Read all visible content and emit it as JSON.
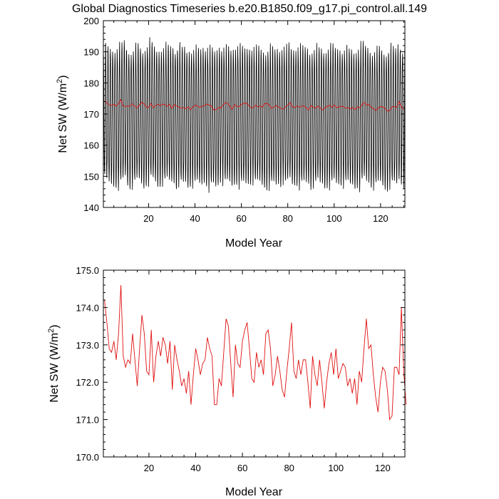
{
  "title": "Global Diagnostics Timeseries b.e20.B1850.f09_g17.pi_control.all.149",
  "colors": {
    "monthly": "#000000",
    "annual": "#e01010",
    "frame": "#000000"
  },
  "chart_data": [
    {
      "type": "line",
      "title": "Global Diagnostics Timeseries b.e20.B1850.f09_g17.pi_control.all.149",
      "xlabel": "Model Year",
      "ylabel_text": "Net SW (W/m",
      "ylabel_sup": "2",
      "ylabel_close": ")",
      "xlim": [
        0.5,
        130.5
      ],
      "ylim": [
        140,
        200
      ],
      "xticks": [
        20,
        40,
        60,
        80,
        100,
        120
      ],
      "yticks": [
        140,
        150,
        160,
        170,
        180,
        190,
        200
      ],
      "ytick_labels": [
        "140",
        "150",
        "160",
        "170",
        "180",
        "190",
        "200"
      ],
      "xtick_labels": [
        "20",
        "40",
        "60",
        "80",
        "100",
        "120"
      ],
      "grid": false,
      "series": [
        {
          "name": "",
          "kind": "monthly",
          "color": "#000000",
          "x_start": 0.5,
          "x_step": 0.0833333,
          "monthly_climatology": [
            191,
            188,
            181,
            169,
            157,
            150,
            148,
            151,
            158,
            169,
            181,
            189
          ],
          "annual_anomaly": [
            1.5,
            0.1,
            -0.3,
            -0.4,
            -0.6,
            -0.3,
            -0.6,
            0.1,
            0.6,
            2.0,
            -0.6,
            -1.1,
            -0.6,
            -0.3,
            0.2,
            0.7,
            -0.3,
            -1.2,
            0.3,
            0.7,
            1.6,
            0.7,
            0.0,
            -1.0,
            -0.3,
            0.4,
            0.1,
            0.5,
            0.2,
            0.4,
            0.5,
            -0.7,
            0.5,
            0.0,
            -0.8,
            -0.1,
            -1.3,
            -0.3,
            -0.2,
            -0.7,
            -0.4,
            -0.8,
            -0.6,
            0.6,
            0.2,
            -1.2,
            -0.8,
            -1.0,
            -1.6,
            -0.5,
            1.0,
            0.6,
            -0.2,
            -0.3,
            -0.3,
            -1.0,
            0.0,
            0.7,
            -0.2,
            -0.3,
            -0.5,
            -0.6,
            -0.1,
            0.4,
            0.8,
            -0.2,
            -0.4,
            -0.1,
            -0.7,
            -0.9,
            -1.1,
            -0.6,
            -0.4,
            -0.6,
            -1.0,
            -0.1,
            -0.4,
            0.9,
            -0.6,
            -0.2,
            1.0,
            -0.5,
            -0.2,
            0.3,
            -0.5,
            -0.3,
            -0.3,
            -0.2,
            0.0,
            -1.3,
            -0.2,
            -0.7,
            0.1,
            -0.6,
            -0.3,
            -1.2,
            -0.4,
            -0.4,
            -0.2,
            0.3,
            -0.5,
            -0.2,
            0.1,
            -0.3,
            -0.5,
            -0.5,
            -1.0,
            -0.6,
            -1.3,
            -0.4,
            -1.0,
            0.4,
            1.1,
            0.2,
            0.3,
            -0.6,
            -0.9,
            -1.1,
            -0.8,
            -0.2,
            -0.9,
            -1.6,
            -1.5,
            -0.3,
            -0.2,
            -0.5,
            -0.6,
            1.4,
            0.4,
            -0.2
          ]
        },
        {
          "name": "",
          "kind": "annual",
          "color": "#e01010",
          "x_start": 1,
          "values": [
            174.2,
            173.6,
            172.9,
            172.8,
            173.1,
            172.6,
            173.3,
            174.6,
            172.7,
            172.4,
            172.6,
            172.5,
            173.3,
            172.6,
            171.9,
            172.9,
            173.8,
            173.3,
            172.3,
            172.2,
            173.4,
            172.0,
            172.7,
            173.1,
            172.7,
            173.2,
            173.0,
            172.5,
            173.1,
            171.8,
            173.0,
            172.6,
            172.3,
            171.9,
            172.1,
            171.7,
            172.3,
            171.4,
            172.2,
            172.9,
            172.6,
            172.2,
            172.5,
            172.6,
            173.2,
            172.9,
            172.7,
            171.4,
            171.4,
            172.1,
            171.9,
            172.8,
            173.7,
            173.5,
            172.5,
            171.6,
            173.0,
            172.5,
            172.4,
            173.1,
            173.4,
            173.6,
            172.9,
            172.1,
            172.0,
            172.8,
            172.4,
            172.6,
            172.2,
            173.3,
            173.4,
            172.9,
            171.9,
            172.2,
            172.7,
            172.3,
            171.8,
            171.6,
            172.3,
            172.9,
            173.6,
            172.3,
            172.1,
            172.6,
            172.2,
            172.6,
            172.6,
            172.0,
            171.3,
            172.7,
            172.2,
            171.9,
            172.6,
            172.0,
            171.3,
            172.0,
            172.5,
            172.8,
            172.2,
            172.9,
            172.1,
            172.3,
            172.5,
            172.4,
            171.9,
            172.1,
            171.7,
            172.1,
            171.4,
            172.3,
            172.0,
            172.9,
            173.7,
            172.9,
            173.0,
            172.2,
            171.6,
            171.2,
            172.0,
            172.4,
            172.3,
            171.8,
            171.0,
            171.1,
            172.4,
            172.4,
            172.2,
            174.0,
            172.3,
            171.4
          ]
        }
      ]
    },
    {
      "type": "line",
      "title": "",
      "xlabel": "Model Year",
      "ylabel_text": "Net SW (W/m",
      "ylabel_sup": "2",
      "ylabel_close": ")",
      "xlim": [
        0.5,
        129.5
      ],
      "ylim": [
        170,
        175
      ],
      "xticks": [
        20,
        40,
        60,
        80,
        100,
        120
      ],
      "yticks": [
        170,
        171,
        172,
        173,
        174,
        175
      ],
      "ytick_labels": [
        "170.0",
        "171.0",
        "172.0",
        "173.0",
        "174.0",
        "175.0"
      ],
      "xtick_labels": [
        "20",
        "40",
        "60",
        "80",
        "100",
        "120"
      ],
      "grid": false,
      "series": [
        {
          "name": "",
          "kind": "annual",
          "color": "#e01010",
          "x_start": 1,
          "values": [
            174.2,
            173.6,
            172.9,
            172.8,
            173.1,
            172.6,
            173.3,
            174.6,
            172.7,
            172.4,
            172.6,
            172.5,
            173.3,
            172.6,
            171.9,
            172.9,
            173.8,
            173.3,
            172.3,
            172.2,
            173.4,
            172.0,
            172.7,
            173.1,
            172.7,
            173.2,
            173.0,
            172.5,
            173.1,
            171.8,
            173.0,
            172.6,
            172.3,
            171.9,
            172.1,
            171.7,
            172.3,
            171.4,
            172.2,
            172.9,
            172.6,
            172.2,
            172.5,
            172.6,
            173.2,
            172.9,
            172.7,
            171.4,
            171.4,
            172.1,
            171.9,
            172.8,
            173.7,
            173.5,
            172.5,
            171.6,
            173.0,
            172.5,
            172.4,
            173.1,
            173.4,
            173.6,
            172.9,
            172.1,
            172.0,
            172.8,
            172.4,
            172.6,
            172.2,
            173.3,
            173.4,
            172.9,
            171.9,
            172.2,
            172.7,
            172.3,
            171.8,
            171.6,
            172.3,
            172.9,
            173.6,
            172.3,
            172.1,
            172.6,
            172.2,
            172.6,
            172.6,
            172.0,
            171.3,
            172.7,
            172.2,
            171.9,
            172.6,
            172.0,
            171.3,
            172.0,
            172.5,
            172.8,
            172.2,
            172.9,
            172.1,
            172.3,
            172.5,
            172.4,
            171.9,
            172.1,
            171.7,
            172.1,
            171.4,
            172.3,
            172.0,
            172.9,
            173.7,
            172.9,
            173.0,
            172.2,
            171.6,
            171.2,
            172.0,
            172.4,
            172.3,
            171.8,
            171.0,
            171.1,
            172.4,
            172.4,
            172.2,
            174.0,
            172.3,
            171.4
          ]
        }
      ]
    }
  ]
}
